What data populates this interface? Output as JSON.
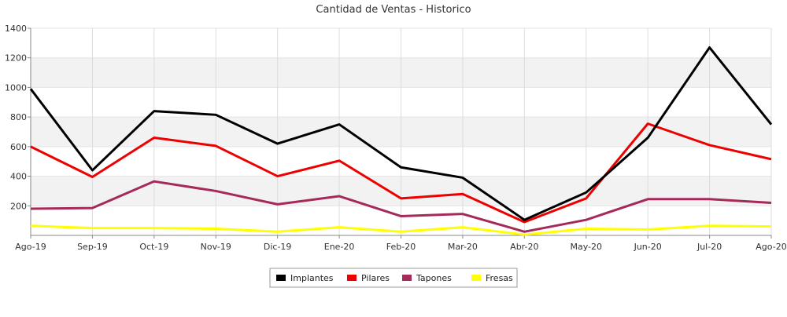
{
  "chart_data": {
    "type": "line",
    "title": "Cantidad de Ventas - Historico",
    "xlabel": "",
    "ylabel": "",
    "categories": [
      "Ago-19",
      "Sep-19",
      "Oct-19",
      "Nov-19",
      "Dic-19",
      "Ene-20",
      "Feb-20",
      "Mar-20",
      "Abr-20",
      "May-20",
      "Jun-20",
      "Jul-20",
      "Ago-20"
    ],
    "ylim": [
      0,
      1400
    ],
    "yticks": [
      200,
      400,
      600,
      800,
      1000,
      1200,
      1400
    ],
    "grid": true,
    "legend_position": "bottom-center",
    "series": [
      {
        "name": "Implantes",
        "color": "#000000",
        "values": [
          990,
          440,
          840,
          815,
          620,
          750,
          460,
          390,
          105,
          290,
          660,
          1270,
          750
        ]
      },
      {
        "name": "Pilares",
        "color": "#ee0000",
        "values": [
          600,
          395,
          660,
          605,
          400,
          505,
          250,
          280,
          90,
          250,
          755,
          610,
          515
        ]
      },
      {
        "name": "Tapones",
        "color": "#a52a5a",
        "values": [
          180,
          185,
          365,
          300,
          210,
          265,
          130,
          145,
          25,
          105,
          245,
          245,
          220
        ]
      },
      {
        "name": "Fresas",
        "color": "#ffff00",
        "values": [
          65,
          50,
          50,
          45,
          25,
          55,
          25,
          55,
          5,
          45,
          40,
          65,
          60
        ]
      }
    ]
  }
}
